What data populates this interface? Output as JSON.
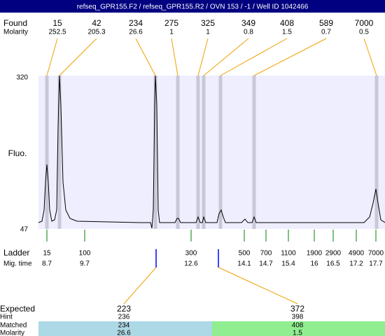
{
  "header": {
    "title": "refseq_GPR155.F2 / refseq_GPR155.R2 / OVN 153 / -1 / Well ID 1042466"
  },
  "found": {
    "label": "Found",
    "molarity_label": "Molarity",
    "peaks": [
      {
        "size": 15,
        "molarity": 252.5
      },
      {
        "size": 42,
        "molarity": 205.3
      },
      {
        "size": 234,
        "molarity": 26.6
      },
      {
        "size": 275,
        "molarity": 1
      },
      {
        "size": 325,
        "molarity": 1
      },
      {
        "size": 349,
        "molarity": 0.8
      },
      {
        "size": 408,
        "molarity": 1.5
      },
      {
        "size": 589,
        "molarity": 0.7
      },
      {
        "size": 7000,
        "molarity": 0.5
      }
    ]
  },
  "plot": {
    "y_label": "Fluo.",
    "y_max": 320,
    "y_min": 47
  },
  "ladder": {
    "label": "Ladder",
    "mig_label": "Mig. time",
    "bands": [
      {
        "size": 15,
        "mig_time": 8.7
      },
      {
        "size": 100,
        "mig_time": 9.7
      },
      {
        "size": 300,
        "mig_time": 12.6
      },
      {
        "size": 500,
        "mig_time": 14.1
      },
      {
        "size": 700,
        "mig_time": 14.7
      },
      {
        "size": 1100,
        "mig_time": 15.4
      },
      {
        "size": 1900,
        "mig_time": 16
      },
      {
        "size": 2900,
        "mig_time": 16.5
      },
      {
        "size": 4900,
        "mig_time": 17.2
      },
      {
        "size": 7000,
        "mig_time": 17.7
      }
    ]
  },
  "expected": {
    "label": "Expected",
    "hint_label": "Hint",
    "matched_label": "Matched",
    "molarity_label": "Molarity",
    "targets": [
      {
        "size": 223,
        "hint": 236,
        "matched": 234,
        "molarity": 26.6
      },
      {
        "size": 372,
        "hint": 398,
        "matched": 408,
        "molarity": 1.5
      }
    ]
  }
}
